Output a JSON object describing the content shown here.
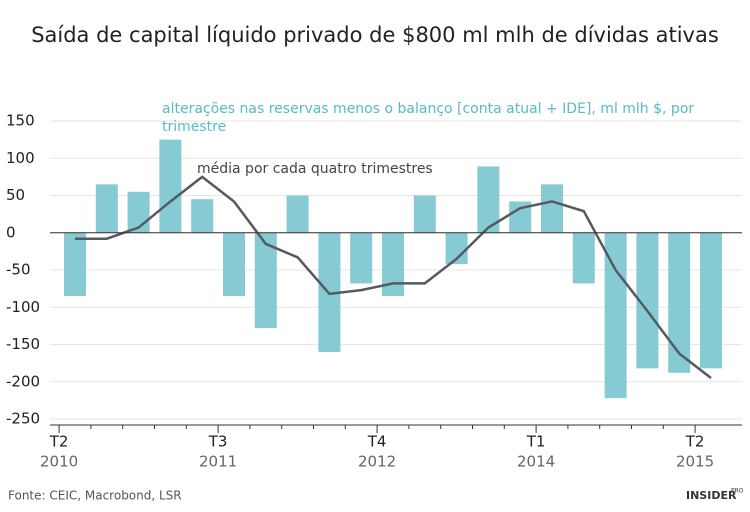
{
  "chart_data": {
    "type": "bar_line",
    "title": "Saída de capital líquido privado de $800 ml mlh de dívidas ativas",
    "source": "Fonte: CEIC, Macrobond, LSR",
    "brand": "INSIDER",
    "brand_sup": "PRO",
    "categories": [
      "T2",
      null,
      null,
      null,
      null,
      "T3",
      null,
      null,
      null,
      null,
      "T4",
      null,
      null,
      null,
      null,
      "T1",
      null,
      null,
      null,
      null,
      "T2"
    ],
    "category_years": [
      "2010",
      null,
      null,
      null,
      null,
      "2011",
      null,
      null,
      null,
      null,
      "2012",
      null,
      null,
      null,
      null,
      "2014",
      null,
      null,
      null,
      null,
      "2015"
    ],
    "series": [
      {
        "name": "alterações nas reservas menos o balanço [conta atual + IDE], ml mlh $, por trimestre",
        "type": "bar",
        "color": "#86cbd3",
        "values": [
          -85,
          65,
          55,
          125,
          45,
          -85,
          -128,
          50,
          -160,
          -68,
          -85,
          50,
          -42,
          89,
          42,
          65,
          -68,
          -222,
          -182,
          -188,
          -182
        ]
      },
      {
        "name": "média por cada quatro trimestres",
        "type": "line",
        "color": "#555a5e",
        "values": [
          -8,
          -8,
          7,
          42,
          75,
          42,
          -15,
          -33,
          -82,
          -77,
          -68,
          -68,
          -35,
          7,
          33,
          42,
          29,
          -50,
          -105,
          -162,
          -195
        ]
      }
    ],
    "ylim": [
      -250,
      150
    ],
    "yticks": [
      150,
      100,
      50,
      0,
      -50,
      -100,
      -150,
      -200,
      -250
    ],
    "grid": true
  }
}
